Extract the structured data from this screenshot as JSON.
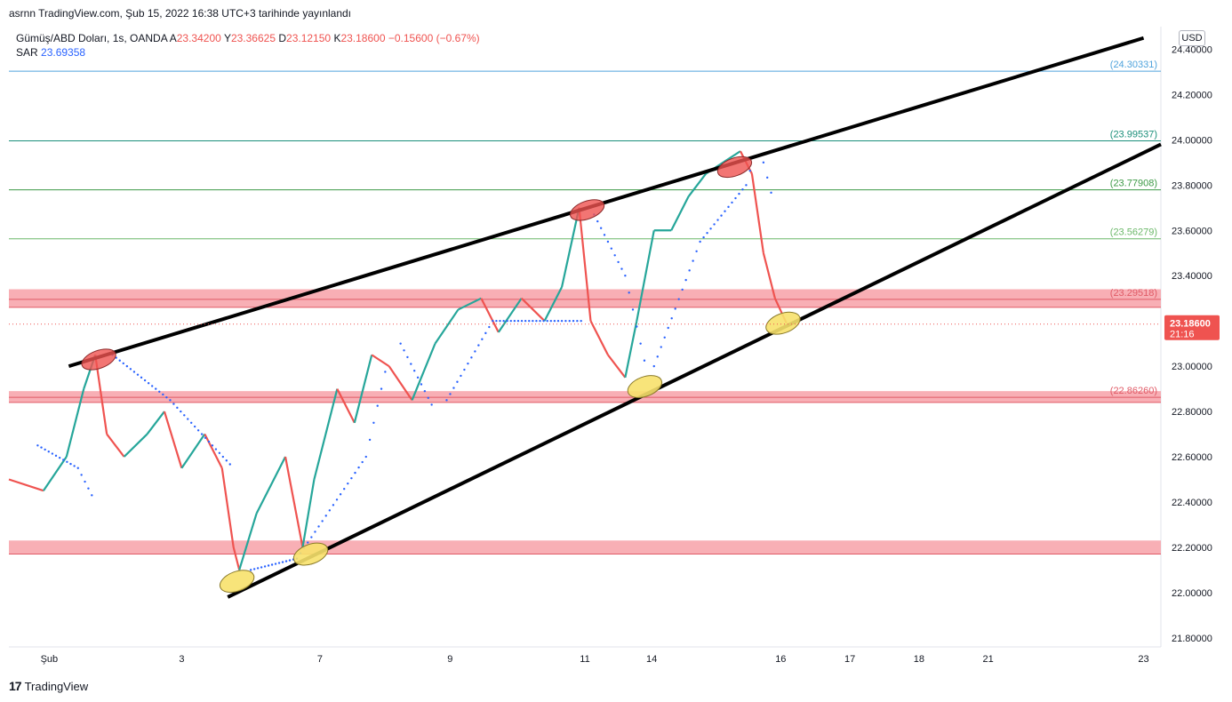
{
  "header": {
    "published": "asrnn TradingView.com, Şub 15, 2022 16:38 UTC+3 tarihinde yayınlandı"
  },
  "legend": {
    "symbol": "Gümüş/ABD Doları, 1s, OANDA",
    "open_label": "A",
    "open": "23.34200",
    "high_label": "Y",
    "high": "23.36625",
    "low_label": "D",
    "low": "23.12150",
    "close_label": "K",
    "close": "23.18600",
    "change": "−0.15600 (−0.67%)",
    "indicator_name": "SAR",
    "indicator_value": "23.69358"
  },
  "currency": "USD",
  "footer": {
    "logo": "17",
    "brand": "TradingView"
  },
  "colors": {
    "up": "#26a69a",
    "down": "#ef5350",
    "sar": "#2962ff",
    "zone_fill": "#f7a1a8",
    "zone_line": "#e05a66",
    "red_marker": "#ef5350",
    "yellow_marker": "#f7e16b"
  },
  "chart_data": {
    "type": "line",
    "title": "",
    "y_ticks": [
      "24.40000",
      "24.20000",
      "24.00000",
      "23.80000",
      "23.60000",
      "23.40000",
      "23.20000",
      "23.00000",
      "22.80000",
      "22.60000",
      "22.40000",
      "22.20000",
      "22.00000",
      "21.80000"
    ],
    "y_tick_values": [
      24.4,
      24.2,
      24.0,
      23.8,
      23.6,
      23.4,
      23.2,
      23.0,
      22.8,
      22.6,
      22.4,
      22.2,
      22.0,
      21.8
    ],
    "x_ticks": [
      "Şub",
      "3",
      "7",
      "9",
      "11",
      "14",
      "16",
      "17",
      "18",
      "21",
      "23"
    ],
    "ylim": [
      21.76,
      24.5
    ],
    "fib_levels": [
      {
        "label": "(24.30331)",
        "value": 24.30331,
        "color": "#4fa3dc"
      },
      {
        "label": "(23.99537)",
        "value": 23.99537,
        "color": "#1b8f7a"
      },
      {
        "label": "(23.77908)",
        "value": 23.77908,
        "color": "#3d9a46"
      },
      {
        "label": "(23.56279)",
        "value": 23.56279,
        "color": "#6cb86a"
      },
      {
        "label": "(23.29518)",
        "value": 23.29518,
        "color": "#e05a66"
      },
      {
        "label": "(22.86260)",
        "value": 22.8626,
        "color": "#e05a66"
      }
    ],
    "support_zones": [
      {
        "low": 23.26,
        "high": 23.34
      },
      {
        "low": 22.84,
        "high": 22.89
      },
      {
        "low": 22.17,
        "high": 22.23
      }
    ],
    "last_price": {
      "value": "23.18600",
      "countdown": "21:16",
      "num": 23.186
    },
    "price_path": [
      [
        0,
        22.5
      ],
      [
        0.03,
        22.45
      ],
      [
        0.05,
        22.6
      ],
      [
        0.065,
        22.9
      ],
      [
        0.075,
        23.05
      ],
      [
        0.085,
        22.7
      ],
      [
        0.1,
        22.6
      ],
      [
        0.12,
        22.7
      ],
      [
        0.135,
        22.8
      ],
      [
        0.15,
        22.55
      ],
      [
        0.17,
        22.7
      ],
      [
        0.185,
        22.55
      ],
      [
        0.195,
        22.2
      ],
      [
        0.2,
        22.1
      ],
      [
        0.215,
        22.35
      ],
      [
        0.24,
        22.6
      ],
      [
        0.255,
        22.2
      ],
      [
        0.265,
        22.5
      ],
      [
        0.285,
        22.9
      ],
      [
        0.3,
        22.75
      ],
      [
        0.315,
        23.05
      ],
      [
        0.33,
        23.0
      ],
      [
        0.35,
        22.85
      ],
      [
        0.37,
        23.1
      ],
      [
        0.39,
        23.25
      ],
      [
        0.41,
        23.3
      ],
      [
        0.425,
        23.15
      ],
      [
        0.445,
        23.3
      ],
      [
        0.465,
        23.2
      ],
      [
        0.48,
        23.35
      ],
      [
        0.495,
        23.7
      ],
      [
        0.505,
        23.2
      ],
      [
        0.52,
        23.05
      ],
      [
        0.535,
        22.95
      ],
      [
        0.545,
        23.2
      ],
      [
        0.56,
        23.6
      ],
      [
        0.575,
        23.6
      ],
      [
        0.59,
        23.75
      ],
      [
        0.605,
        23.85
      ],
      [
        0.62,
        23.9
      ],
      [
        0.635,
        23.95
      ],
      [
        0.645,
        23.85
      ],
      [
        0.655,
        23.5
      ],
      [
        0.665,
        23.3
      ],
      [
        0.675,
        23.19
      ]
    ],
    "sar_segments": [
      [
        [
          0.025,
          22.65
        ],
        [
          0.06,
          22.55
        ],
        [
          0.075,
          22.4
        ]
      ],
      [
        [
          0.09,
          23.05
        ],
        [
          0.14,
          22.85
        ],
        [
          0.195,
          22.55
        ]
      ],
      [
        [
          0.21,
          22.1
        ],
        [
          0.25,
          22.15
        ],
        [
          0.31,
          22.6
        ],
        [
          0.33,
          23.05
        ]
      ],
      [
        [
          0.34,
          23.1
        ],
        [
          0.37,
          22.8
        ]
      ],
      [
        [
          0.38,
          22.85
        ],
        [
          0.42,
          23.2
        ],
        [
          0.48,
          23.2
        ],
        [
          0.5,
          23.2
        ]
      ],
      [
        [
          0.505,
          23.7
        ],
        [
          0.535,
          23.4
        ],
        [
          0.555,
          22.95
        ]
      ],
      [
        [
          0.56,
          23.0
        ],
        [
          0.6,
          23.55
        ],
        [
          0.64,
          23.8
        ],
        [
          0.65,
          23.99
        ]
      ],
      [
        [
          0.655,
          23.9
        ],
        [
          0.665,
          23.7
        ]
      ]
    ],
    "trendlines": [
      {
        "from": [
          0.052,
          23.0
        ],
        "to": [
          0.985,
          24.45
        ]
      },
      {
        "from": [
          0.19,
          21.98
        ],
        "to": [
          1.0,
          23.98
        ]
      }
    ],
    "red_markers": [
      [
        0.078,
        23.03
      ],
      [
        0.502,
        23.69
      ],
      [
        0.63,
        23.88
      ]
    ],
    "yellow_markers": [
      [
        0.198,
        22.05
      ],
      [
        0.262,
        22.17
      ],
      [
        0.552,
        22.91
      ],
      [
        0.672,
        23.19
      ]
    ]
  }
}
